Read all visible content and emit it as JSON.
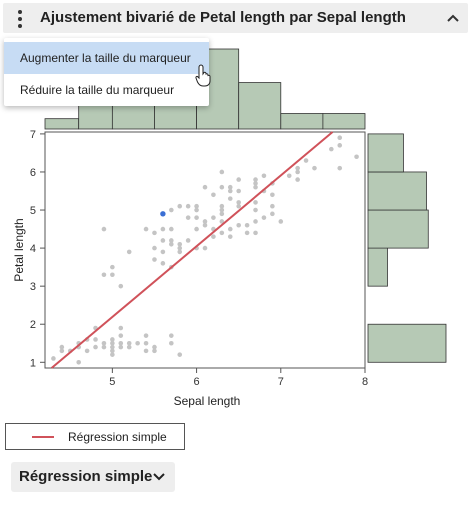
{
  "header": {
    "title": "Ajustement bivarié de Petal length par Sepal length"
  },
  "menu": {
    "items": [
      {
        "label": "Augmenter la taille du marqueur",
        "hovered": true
      },
      {
        "label": "Réduire la taille du marqueur",
        "hovered": false
      }
    ]
  },
  "legend": {
    "label": "Régression simple",
    "color": "#d0525a"
  },
  "regression_button": {
    "label": "Régression simple"
  },
  "chart_data": {
    "type": "scatter",
    "xlabel": "Sepal length",
    "ylabel": "Petal length",
    "xlim": [
      4.2,
      8.0
    ],
    "ylim": [
      0.85,
      7.05
    ],
    "xticks": [
      5,
      6,
      7,
      8
    ],
    "yticks": [
      1,
      2,
      3,
      4,
      5,
      6,
      7
    ],
    "point_color": "#c4c4c4",
    "selected_point_color": "#3b6fd4",
    "hist_color": "#b6c9b5",
    "points": [
      [
        4.3,
        1.1
      ],
      [
        4.4,
        1.3
      ],
      [
        4.4,
        1.4
      ],
      [
        4.5,
        1.3
      ],
      [
        4.6,
        1.0
      ],
      [
        4.6,
        1.4
      ],
      [
        4.6,
        1.5
      ],
      [
        4.7,
        1.3
      ],
      [
        4.7,
        1.6
      ],
      [
        4.8,
        1.4
      ],
      [
        4.8,
        1.6
      ],
      [
        4.8,
        1.9
      ],
      [
        4.9,
        1.4
      ],
      [
        4.9,
        1.5
      ],
      [
        4.9,
        3.3
      ],
      [
        4.9,
        4.5
      ],
      [
        5.0,
        1.2
      ],
      [
        5.0,
        1.3
      ],
      [
        5.0,
        1.4
      ],
      [
        5.0,
        1.5
      ],
      [
        5.0,
        1.6
      ],
      [
        5.0,
        3.3
      ],
      [
        5.0,
        3.5
      ],
      [
        5.1,
        1.4
      ],
      [
        5.1,
        1.5
      ],
      [
        5.1,
        1.7
      ],
      [
        5.1,
        1.9
      ],
      [
        5.1,
        3.0
      ],
      [
        5.2,
        1.4
      ],
      [
        5.2,
        1.5
      ],
      [
        5.2,
        3.9
      ],
      [
        5.3,
        1.5
      ],
      [
        5.4,
        1.3
      ],
      [
        5.4,
        1.5
      ],
      [
        5.4,
        1.7
      ],
      [
        5.4,
        4.5
      ],
      [
        5.5,
        1.3
      ],
      [
        5.5,
        1.4
      ],
      [
        5.5,
        3.7
      ],
      [
        5.5,
        4.0
      ],
      [
        5.5,
        4.4
      ],
      [
        5.6,
        3.6
      ],
      [
        5.6,
        3.9
      ],
      [
        5.6,
        4.2
      ],
      [
        5.6,
        4.5
      ],
      [
        5.7,
        1.5
      ],
      [
        5.7,
        1.7
      ],
      [
        5.7,
        3.5
      ],
      [
        5.7,
        4.1
      ],
      [
        5.7,
        4.2
      ],
      [
        5.7,
        4.5
      ],
      [
        5.7,
        5.0
      ],
      [
        5.8,
        1.2
      ],
      [
        5.8,
        3.9
      ],
      [
        5.8,
        4.0
      ],
      [
        5.8,
        4.1
      ],
      [
        5.8,
        5.1
      ],
      [
        5.9,
        4.2
      ],
      [
        5.9,
        4.8
      ],
      [
        5.9,
        5.1
      ],
      [
        6.0,
        4.0
      ],
      [
        6.0,
        4.5
      ],
      [
        6.0,
        4.8
      ],
      [
        6.0,
        5.0
      ],
      [
        6.0,
        5.1
      ],
      [
        6.1,
        4.0
      ],
      [
        6.1,
        4.6
      ],
      [
        6.1,
        4.7
      ],
      [
        6.1,
        5.6
      ],
      [
        6.2,
        4.3
      ],
      [
        6.2,
        4.5
      ],
      [
        6.2,
        4.8
      ],
      [
        6.2,
        5.4
      ],
      [
        6.3,
        4.4
      ],
      [
        6.3,
        4.7
      ],
      [
        6.3,
        4.9
      ],
      [
        6.3,
        5.0
      ],
      [
        6.3,
        5.1
      ],
      [
        6.3,
        5.6
      ],
      [
        6.3,
        6.0
      ],
      [
        6.4,
        4.3
      ],
      [
        6.4,
        4.5
      ],
      [
        6.4,
        5.3
      ],
      [
        6.4,
        5.5
      ],
      [
        6.4,
        5.6
      ],
      [
        6.5,
        4.6
      ],
      [
        6.5,
        5.1
      ],
      [
        6.5,
        5.2
      ],
      [
        6.5,
        5.5
      ],
      [
        6.5,
        5.8
      ],
      [
        6.6,
        4.4
      ],
      [
        6.6,
        4.6
      ],
      [
        6.7,
        4.4
      ],
      [
        6.7,
        4.7
      ],
      [
        6.7,
        5.0
      ],
      [
        6.7,
        5.2
      ],
      [
        6.7,
        5.6
      ],
      [
        6.7,
        5.7
      ],
      [
        6.7,
        5.8
      ],
      [
        6.8,
        4.8
      ],
      [
        6.8,
        5.5
      ],
      [
        6.8,
        5.9
      ],
      [
        6.9,
        4.9
      ],
      [
        6.9,
        5.1
      ],
      [
        6.9,
        5.4
      ],
      [
        6.9,
        5.7
      ],
      [
        7.0,
        4.7
      ],
      [
        7.1,
        5.9
      ],
      [
        7.2,
        5.8
      ],
      [
        7.2,
        6.0
      ],
      [
        7.2,
        6.1
      ],
      [
        7.3,
        6.3
      ],
      [
        7.4,
        6.1
      ],
      [
        7.6,
        6.6
      ],
      [
        7.7,
        6.1
      ],
      [
        7.7,
        6.7
      ],
      [
        7.7,
        6.9
      ],
      [
        7.9,
        6.4
      ]
    ],
    "selected_point": [
      5.6,
      4.9
    ],
    "regression_line": {
      "intercept": -7.101,
      "slope": 1.8584
    },
    "top_histogram": {
      "bins": [
        [
          4.2,
          4.6,
          4
        ],
        [
          4.6,
          5.0,
          27
        ],
        [
          5.0,
          5.5,
          27
        ],
        [
          5.5,
          6.0,
          30
        ],
        [
          6.0,
          6.5,
          31
        ],
        [
          6.5,
          7.0,
          18
        ],
        [
          7.0,
          7.5,
          6
        ],
        [
          7.5,
          8.0,
          6
        ]
      ]
    },
    "right_histogram": {
      "bins": [
        [
          1,
          2,
          44
        ],
        [
          2,
          3,
          0
        ],
        [
          3,
          4,
          11
        ],
        [
          4,
          5,
          34
        ],
        [
          5,
          6,
          33
        ],
        [
          6,
          7,
          20
        ]
      ]
    }
  }
}
